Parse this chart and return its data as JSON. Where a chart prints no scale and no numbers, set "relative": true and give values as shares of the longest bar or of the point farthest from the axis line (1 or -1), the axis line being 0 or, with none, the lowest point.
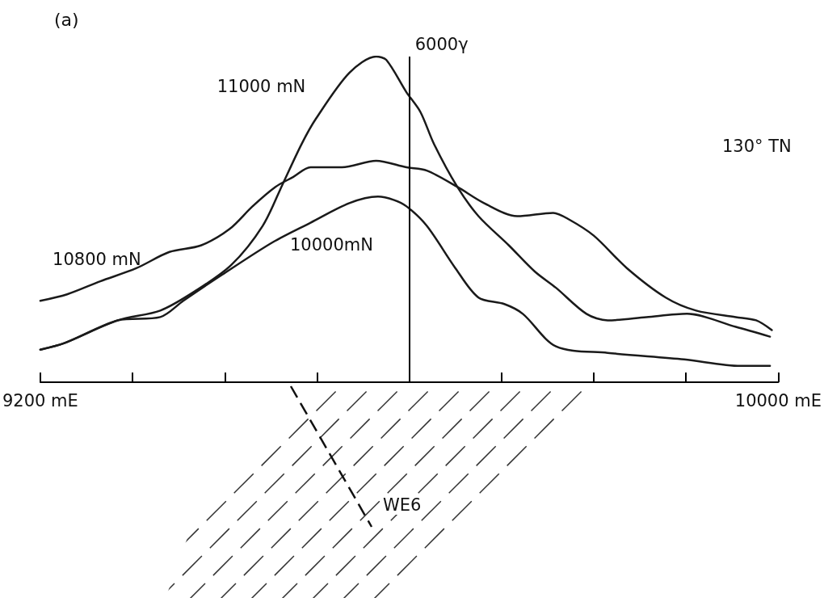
{
  "chart_data": {
    "type": "line",
    "title": "(a)",
    "relative": true,
    "marker": "none",
    "line_style": "solid",
    "xlim": [
      9200,
      10000
    ],
    "xticks": [
      {
        "value": 9200,
        "label": "9200 mE"
      },
      {
        "value": 9300,
        "label": null
      },
      {
        "value": 9400,
        "label": null
      },
      {
        "value": 9500,
        "label": null
      },
      {
        "value": 9600,
        "label": null
      },
      {
        "value": 9700,
        "label": null
      },
      {
        "value": 9800,
        "label": null
      },
      {
        "value": 9900,
        "label": null
      },
      {
        "value": 10000,
        "label": "10000 mE"
      }
    ],
    "ref_lines": [
      {
        "axis": "x",
        "value": 9600,
        "label": "6000γ",
        "color": "#000000"
      }
    ],
    "annotations": [
      "130° TN",
      "WE6"
    ],
    "series": [
      {
        "name": "11000 mN",
        "color": "#1a1a1a",
        "x": [
          9200,
          9226,
          9284,
          9330,
          9368,
          9407,
          9441,
          9463,
          9483,
          9499,
          9535,
          9564,
          9575,
          9597,
          9612,
          9627,
          9652,
          9675,
          9708,
          9736,
          9759,
          9792,
          9815,
          9857,
          9901,
          9954,
          9991
        ],
        "values": [
          0.1,
          0.12,
          0.19,
          0.22,
          0.28,
          0.36,
          0.48,
          0.61,
          0.73,
          0.81,
          0.95,
          1.0,
          0.99,
          0.89,
          0.83,
          0.73,
          0.6,
          0.51,
          0.42,
          0.34,
          0.29,
          0.21,
          0.19,
          0.2,
          0.21,
          0.17,
          0.14
        ]
      },
      {
        "name": "10800 mN",
        "color": "#1a1a1a",
        "x": [
          9200,
          9229,
          9265,
          9304,
          9340,
          9374,
          9405,
          9430,
          9455,
          9474,
          9493,
          9527,
          9564,
          9597,
          9619,
          9652,
          9681,
          9717,
          9756,
          9773,
          9800,
          9836,
          9878,
          9911,
          9954,
          9976,
          9993
        ],
        "values": [
          0.25,
          0.27,
          0.31,
          0.35,
          0.4,
          0.42,
          0.47,
          0.54,
          0.6,
          0.63,
          0.66,
          0.66,
          0.68,
          0.66,
          0.65,
          0.6,
          0.55,
          0.51,
          0.52,
          0.5,
          0.45,
          0.35,
          0.26,
          0.22,
          0.2,
          0.19,
          0.16
        ]
      },
      {
        "name": "10000mN",
        "color": "#1a1a1a",
        "x": [
          9200,
          9226,
          9284,
          9330,
          9355,
          9397,
          9452,
          9493,
          9535,
          9566,
          9583,
          9597,
          9619,
          9650,
          9675,
          9703,
          9723,
          9759,
          9815,
          9898,
          9959,
          9991
        ],
        "values": [
          0.1,
          0.12,
          0.19,
          0.2,
          0.25,
          0.33,
          0.43,
          0.49,
          0.55,
          0.57,
          0.56,
          0.54,
          0.48,
          0.35,
          0.26,
          0.24,
          0.21,
          0.11,
          0.09,
          0.07,
          0.05,
          0.05
        ]
      }
    ]
  }
}
